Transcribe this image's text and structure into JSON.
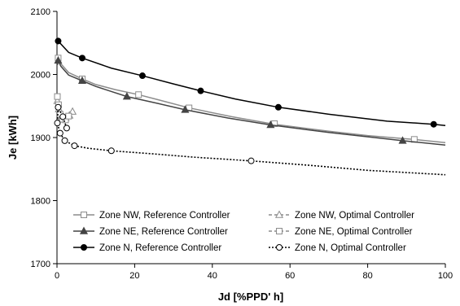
{
  "chart_data": {
    "type": "line",
    "title": "",
    "xlabel": "Jd [%PPD' h]",
    "ylabel": "Je [kWh]",
    "xlim": [
      0,
      100
    ],
    "ylim": [
      1700,
      2100
    ],
    "xticks": [
      0,
      20,
      40,
      60,
      80,
      100
    ],
    "yticks": [
      1700,
      1800,
      1900,
      2000,
      2100
    ],
    "grid": false,
    "legend_position": "bottom-center",
    "series": [
      {
        "name": "Zone NW, Reference Controller",
        "color": "#8c8c8c",
        "line_style": "solid",
        "marker": "open-square",
        "x": [
          0.1,
          0.3,
          1,
          3,
          6.5,
          10,
          15,
          21,
          26,
          34,
          45,
          56,
          70,
          80,
          92,
          100
        ],
        "y": [
          2020,
          2026,
          2017,
          2003,
          1993,
          1984,
          1976,
          1968,
          1960,
          1947,
          1933,
          1921,
          1910,
          1903,
          1897,
          1892
        ],
        "markers_x": [
          0.3,
          6.5,
          21,
          34,
          56,
          92
        ],
        "markers_y": [
          2026,
          1993,
          1968,
          1947,
          1922,
          1897
        ]
      },
      {
        "name": "Zone NE, Reference Controller",
        "color": "#444444",
        "line_style": "solid",
        "marker": "filled-triangle",
        "x": [
          0.1,
          0.3,
          1,
          3,
          6.5,
          10,
          18,
          26,
          33,
          44,
          55,
          70,
          89,
          100
        ],
        "y": [
          2015,
          2022,
          2013,
          1999,
          1990,
          1981,
          1965,
          1954,
          1944,
          1931,
          1920,
          1908,
          1895,
          1888
        ],
        "markers_x": [
          0.3,
          6.5,
          18,
          33,
          55,
          89
        ],
        "markers_y": [
          2022,
          1990,
          1965,
          1944,
          1920,
          1895
        ]
      },
      {
        "name": "Zone N, Reference Controller",
        "color": "#000000",
        "line_style": "solid",
        "marker": "filled-circle",
        "x": [
          0.1,
          0.3,
          3,
          6.5,
          14,
          22,
          30,
          37,
          46,
          57,
          70,
          85,
          97,
          100
        ],
        "y": [
          2048,
          2053,
          2035,
          2026,
          2010,
          1998,
          1985,
          1974,
          1961,
          1948,
          1937,
          1926,
          1921,
          1919
        ],
        "markers_x": [
          0.3,
          6.5,
          22,
          37,
          57,
          97
        ],
        "markers_y": [
          2053,
          2026,
          1998,
          1974,
          1948,
          1921
        ]
      },
      {
        "name": "Zone NW, Optimal Controller",
        "color": "#8c8c8c",
        "line_style": "dashed",
        "marker": "open-triangle",
        "x": [
          0.1,
          0.5,
          1.2,
          2.2,
          3.2,
          4
        ],
        "y": [
          1958,
          1945,
          1932,
          1931,
          1935,
          1941
        ],
        "markers_x": [
          0.1,
          0.5,
          1.2,
          2.2,
          3.2,
          4
        ],
        "markers_y": [
          1958,
          1945,
          1932,
          1931,
          1935,
          1941
        ]
      },
      {
        "name": "Zone NE, Optimal Controller",
        "color": "#8c8c8c",
        "line_style": "dashed",
        "marker": "open-square",
        "x": [
          0.1,
          0.4,
          0.8,
          1.4,
          2.2,
          3.0
        ],
        "y": [
          1965,
          1952,
          1937,
          1929,
          1928,
          1934
        ],
        "markers_x": [
          0.1,
          0.4,
          0.8,
          1.4,
          2.2,
          3.0
        ],
        "markers_y": [
          1965,
          1952,
          1937,
          1929,
          1928,
          1934
        ]
      },
      {
        "name": "Zone N, Optimal Controller",
        "color": "#000000",
        "line_style": "dotted",
        "marker": "open-circle",
        "x": [
          2.5,
          1.5,
          0.3,
          0.1,
          0.8,
          2.0,
          4.5,
          8,
          14,
          25,
          35,
          50,
          65,
          80,
          100
        ],
        "y": [
          1915,
          1933,
          1948,
          1923,
          1907,
          1895,
          1887,
          1883,
          1879,
          1874,
          1869,
          1863,
          1856,
          1848,
          1841
        ],
        "markers_x": [
          2.5,
          1.5,
          0.3,
          0.1,
          0.8,
          2.0,
          4.5,
          14,
          50
        ],
        "markers_y": [
          1915,
          1933,
          1948,
          1923,
          1907,
          1895,
          1887,
          1879,
          1863
        ]
      }
    ]
  }
}
